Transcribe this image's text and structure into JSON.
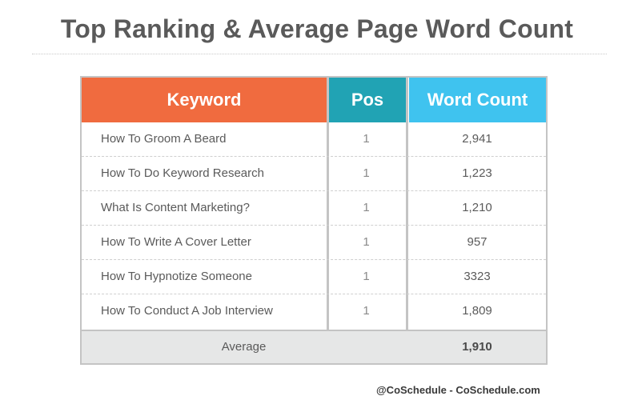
{
  "title": "Top Ranking & Average Page Word Count",
  "colors": {
    "keyword_header": "#f06b3f",
    "pos_header": "#21a3b4",
    "word_count_header": "#3fc3ef"
  },
  "chart_data": {
    "type": "table",
    "columns": [
      "Keyword",
      "Pos",
      "Word Count"
    ],
    "rows": [
      [
        "How To Groom A Beard",
        "1",
        "2,941"
      ],
      [
        "How To Do Keyword Research",
        "1",
        "1,223"
      ],
      [
        "What Is Content Marketing?",
        "1",
        "1,210"
      ],
      [
        "How To Write A Cover Letter",
        "1",
        "957"
      ],
      [
        "How To Hypnotize Someone",
        "1",
        "3323"
      ],
      [
        "How To Conduct A Job Interview",
        "1",
        "1,809"
      ]
    ],
    "footer": {
      "label": "Average",
      "value": "1,910"
    }
  },
  "credit": "@CoSchedule - CoSchedule.com"
}
